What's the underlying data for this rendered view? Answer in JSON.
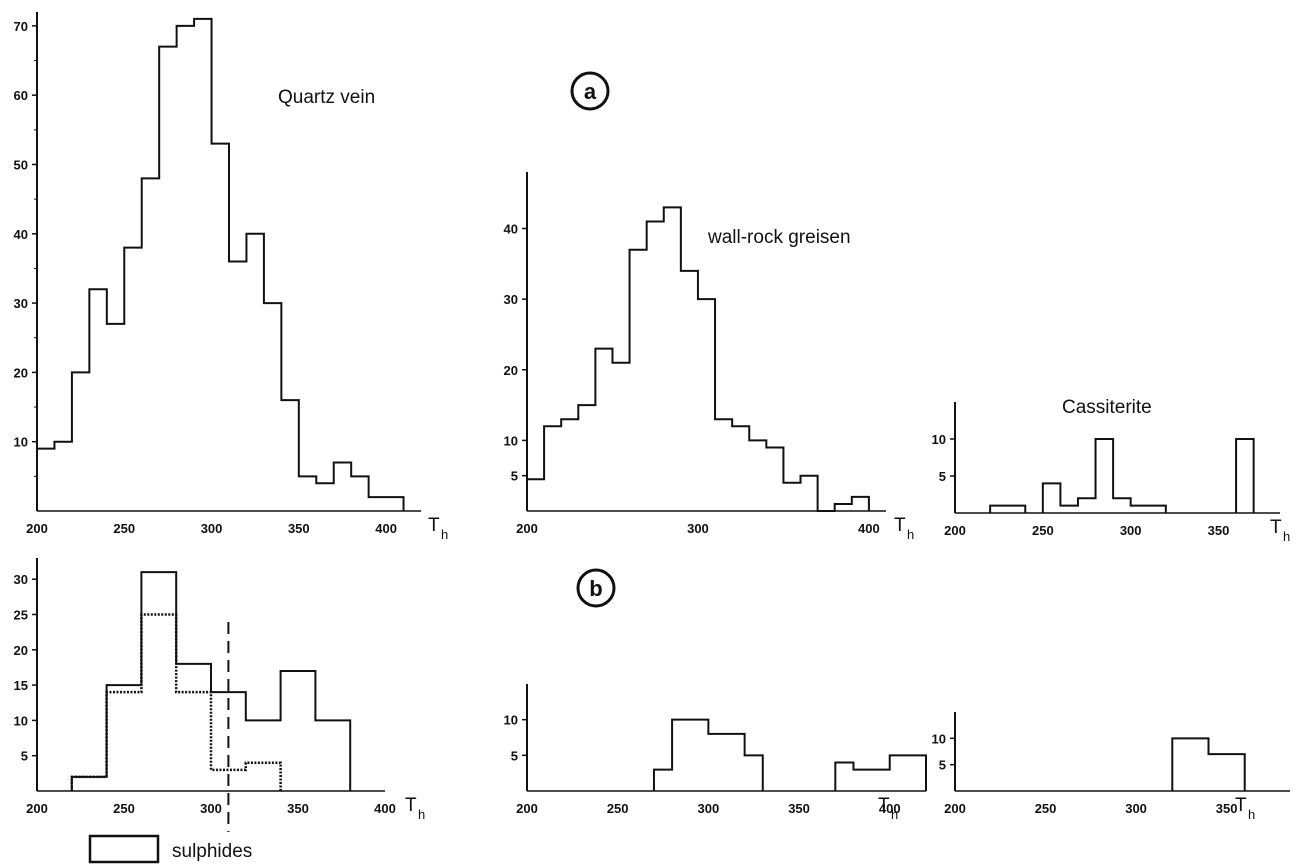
{
  "labels": {
    "panel_a": "a",
    "panel_b": "b",
    "legend": "sulphides"
  },
  "chart_data": [
    {
      "id": "quartz",
      "type": "histogram",
      "title": "Quartz vein",
      "xlabel": "T",
      "xlabel_sub": "h",
      "xlim": [
        200,
        420
      ],
      "ylim": [
        0,
        72
      ],
      "xticks": [
        200,
        250,
        300,
        350,
        400
      ],
      "yticks": [
        10,
        20,
        30,
        40,
        50,
        60,
        70
      ],
      "bin_width": 10,
      "series": [
        {
          "x": [
            200,
            210,
            220,
            230,
            240,
            250,
            260,
            270,
            280,
            290,
            300,
            310,
            320,
            330,
            340,
            350,
            360,
            370,
            380,
            390,
            400
          ],
          "values": [
            9,
            10,
            20,
            32,
            27,
            38,
            48,
            67,
            70,
            71,
            53,
            36,
            40,
            30,
            16,
            5,
            4,
            7,
            5,
            2,
            2
          ]
        }
      ]
    },
    {
      "id": "wallrock",
      "type": "histogram",
      "title": "wall-rock greisen",
      "xlabel": "T",
      "xlabel_sub": "h",
      "xlim": [
        200,
        410
      ],
      "ylim": [
        0,
        48
      ],
      "xticks": [
        200,
        300,
        400
      ],
      "yticks": [
        5,
        10,
        20,
        30,
        40
      ],
      "bin_width": 10,
      "series": [
        {
          "x": [
            200,
            210,
            220,
            230,
            240,
            250,
            260,
            270,
            280,
            290,
            300,
            310,
            320,
            330,
            340,
            350,
            360,
            370,
            380,
            390
          ],
          "values": [
            4.5,
            12,
            13,
            15,
            23,
            21,
            37,
            41,
            43,
            34,
            30,
            13,
            12,
            10,
            9,
            4,
            5,
            0,
            1,
            2
          ]
        }
      ]
    },
    {
      "id": "cass_a",
      "type": "histogram",
      "title": "Cassiterite",
      "xlabel": "T",
      "xlabel_sub": "h",
      "xlim": [
        200,
        385
      ],
      "ylim": [
        0,
        15
      ],
      "xticks": [
        200,
        250,
        300,
        350
      ],
      "yticks": [
        5,
        10
      ],
      "bin_width": 10,
      "series": [
        {
          "x": [
            220,
            230,
            250,
            260,
            270,
            280,
            290,
            300,
            310,
            360
          ],
          "values": [
            1,
            1,
            4,
            1,
            2,
            10,
            2,
            1,
            1,
            10
          ]
        }
      ]
    },
    {
      "id": "quartz_b",
      "type": "histogram",
      "title": "",
      "xlabel": "T",
      "xlabel_sub": "h",
      "xlim": [
        200,
        400
      ],
      "ylim": [
        0,
        33
      ],
      "xticks": [
        200,
        250,
        300,
        350,
        400
      ],
      "yticks": [
        5,
        10,
        15,
        20,
        25,
        30
      ],
      "bin_width": 20,
      "marker_x": 310,
      "series": [
        {
          "name": "total",
          "x": [
            220,
            240,
            260,
            280,
            300,
            320,
            340,
            360
          ],
          "values": [
            2,
            15,
            31,
            18,
            14,
            10,
            17,
            10
          ]
        },
        {
          "name": "sulphides",
          "x": [
            220,
            240,
            260,
            280,
            300,
            320
          ],
          "values": [
            2,
            14,
            25,
            14,
            3,
            4
          ]
        }
      ]
    },
    {
      "id": "wallrock_b",
      "type": "histogram",
      "title": "",
      "xlabel": "T",
      "xlabel_sub": "h",
      "xlim": [
        200,
        420
      ],
      "ylim": [
        0,
        15
      ],
      "xticks": [
        200,
        250,
        300,
        350,
        400
      ],
      "yticks": [
        5,
        10
      ],
      "bin_width": 10,
      "series": [
        {
          "x": [
            270,
            280,
            290,
            300,
            310,
            320,
            370,
            380,
            390,
            400,
            410
          ],
          "values": [
            3,
            10,
            10,
            8,
            8,
            5,
            4,
            3,
            3,
            5,
            5
          ]
        }
      ]
    },
    {
      "id": "cass_b",
      "type": "histogram",
      "title": "",
      "xlabel": "T",
      "xlabel_sub": "h",
      "xlim": [
        200,
        385
      ],
      "ylim": [
        0,
        15
      ],
      "xticks": [
        200,
        250,
        300,
        350
      ],
      "yticks": [
        5,
        10
      ],
      "bin_width": 20,
      "series": [
        {
          "x": [
            320,
            340
          ],
          "values": [
            10,
            7
          ]
        }
      ]
    }
  ]
}
